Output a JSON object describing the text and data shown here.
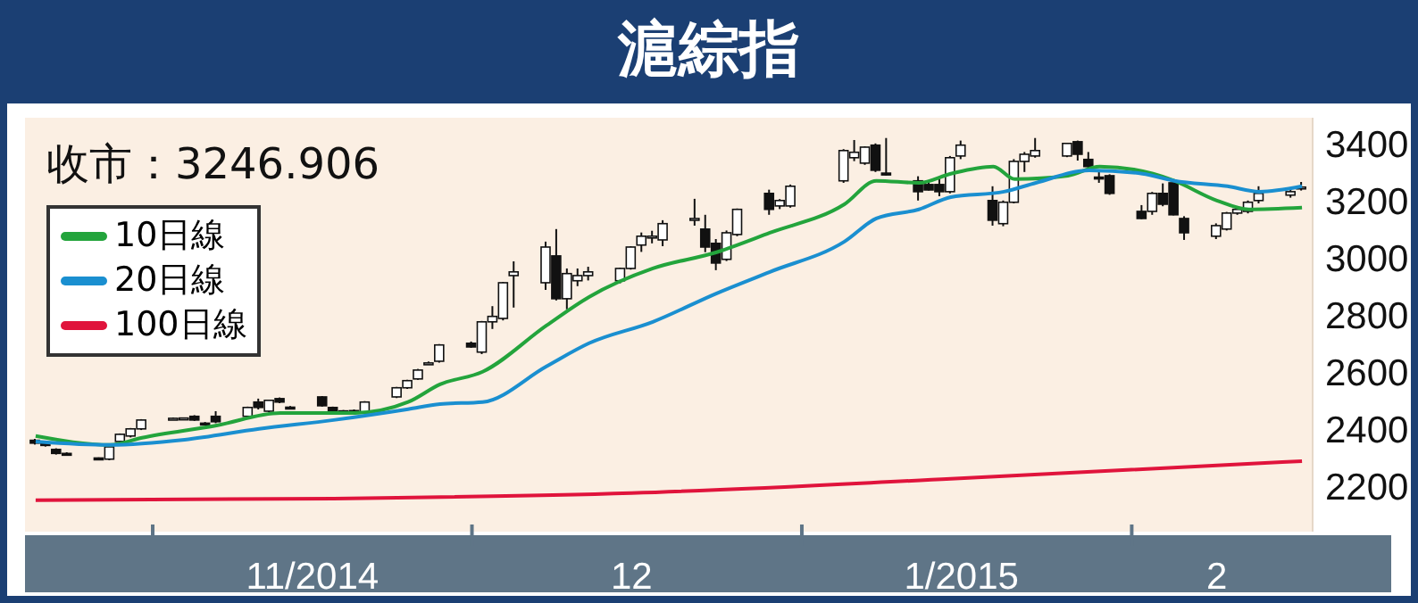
{
  "chart_data": {
    "type": "candlestick",
    "title": "滬綜指",
    "annotations": [
      "收市：3246.906"
    ],
    "legend": "top left",
    "xlim": [
      "2014-10-20",
      "2015-02-18"
    ],
    "ylim": [
      2040,
      3490
    ],
    "yticks": [
      2200,
      2400,
      2600,
      2800,
      3000,
      3200,
      3400
    ],
    "xticks": [
      {
        "value": "2014-11-01",
        "label": null
      },
      {
        "value": "2014-11-16",
        "label": "11/2014"
      },
      {
        "value": "2014-12-01",
        "label": null
      },
      {
        "value": "2014-12-16",
        "label": "12"
      },
      {
        "value": "2015-01-01",
        "label": null
      },
      {
        "value": "2015-01-16",
        "label": "1/2015"
      },
      {
        "value": "2015-02-01",
        "label": null
      },
      {
        "value": "2015-02-09",
        "label": "2"
      }
    ],
    "x": [
      "2014-10-21",
      "2014-10-22",
      "2014-10-23",
      "2014-10-24",
      "2014-10-27",
      "2014-10-28",
      "2014-10-29",
      "2014-10-30",
      "2014-10-31",
      "2014-11-03",
      "2014-11-04",
      "2014-11-05",
      "2014-11-06",
      "2014-11-07",
      "2014-11-10",
      "2014-11-11",
      "2014-11-12",
      "2014-11-13",
      "2014-11-14",
      "2014-11-17",
      "2014-11-18",
      "2014-11-19",
      "2014-11-20",
      "2014-11-21",
      "2014-11-24",
      "2014-11-25",
      "2014-11-26",
      "2014-11-27",
      "2014-11-28",
      "2014-12-01",
      "2014-12-02",
      "2014-12-03",
      "2014-12-04",
      "2014-12-05",
      "2014-12-08",
      "2014-12-09",
      "2014-12-10",
      "2014-12-11",
      "2014-12-12",
      "2014-12-15",
      "2014-12-16",
      "2014-12-17",
      "2014-12-18",
      "2014-12-19",
      "2014-12-22",
      "2014-12-23",
      "2014-12-24",
      "2014-12-25",
      "2014-12-26",
      "2014-12-29",
      "2014-12-30",
      "2014-12-31",
      "2015-01-05",
      "2015-01-06",
      "2015-01-07",
      "2015-01-08",
      "2015-01-09",
      "2015-01-12",
      "2015-01-13",
      "2015-01-14",
      "2015-01-15",
      "2015-01-16",
      "2015-01-19",
      "2015-01-20",
      "2015-01-21",
      "2015-01-22",
      "2015-01-23",
      "2015-01-26",
      "2015-01-27",
      "2015-01-28",
      "2015-01-29",
      "2015-01-30",
      "2015-02-02",
      "2015-02-03",
      "2015-02-04",
      "2015-02-05",
      "2015-02-06",
      "2015-02-09",
      "2015-02-10",
      "2015-02-11",
      "2015-02-12",
      "2015-02-13",
      "2015-02-16",
      "2015-02-17"
    ],
    "ohlc": [
      [
        2360,
        2365,
        2345,
        2350
      ],
      [
        2352,
        2356,
        2338,
        2342
      ],
      [
        2328,
        2332,
        2310,
        2314
      ],
      [
        2314,
        2318,
        2308,
        2311
      ],
      [
        2298,
        2300,
        2290,
        2293
      ],
      [
        2294,
        2340,
        2290,
        2337
      ],
      [
        2356,
        2384,
        2352,
        2381
      ],
      [
        2375,
        2403,
        2370,
        2400
      ],
      [
        2400,
        2434,
        2396,
        2431
      ],
      [
        2436,
        2440,
        2432,
        2437
      ],
      [
        2437,
        2440,
        2433,
        2438
      ],
      [
        2444,
        2448,
        2428,
        2431
      ],
      [
        2420,
        2424,
        2416,
        2419
      ],
      [
        2444,
        2462,
        2420,
        2425
      ],
      [
        2444,
        2478,
        2440,
        2475
      ],
      [
        2494,
        2506,
        2468,
        2475
      ],
      [
        2462,
        2502,
        2458,
        2500
      ],
      [
        2506,
        2510,
        2490,
        2494
      ],
      [
        2476,
        2480,
        2472,
        2475
      ],
      [
        2512,
        2515,
        2478,
        2481
      ],
      [
        2475,
        2478,
        2460,
        2462
      ],
      [
        2463,
        2466,
        2459,
        2462
      ],
      [
        2464,
        2468,
        2458,
        2461
      ],
      [
        2456,
        2497,
        2452,
        2494
      ],
      [
        2512,
        2547,
        2508,
        2544
      ],
      [
        2544,
        2572,
        2540,
        2569
      ],
      [
        2575,
        2610,
        2572,
        2606
      ],
      [
        2630,
        2636,
        2626,
        2631
      ],
      [
        2637,
        2697,
        2632,
        2694
      ],
      [
        2700,
        2706,
        2684,
        2687
      ],
      [
        2669,
        2778,
        2662,
        2775
      ],
      [
        2775,
        2830,
        2750,
        2794
      ],
      [
        2787,
        2915,
        2780,
        2912
      ],
      [
        2937,
        2987,
        2825,
        2950
      ],
      [
        2912,
        3056,
        2887,
        3037
      ],
      [
        3006,
        3100,
        2850,
        2856
      ],
      [
        2856,
        2962,
        2819,
        2944
      ],
      [
        2919,
        2962,
        2900,
        2937
      ],
      [
        2937,
        2968,
        2920,
        2950
      ],
      [
        2919,
        2965,
        2910,
        2962
      ],
      [
        2962,
        3040,
        2958,
        3037
      ],
      [
        3044,
        3088,
        3020,
        3075
      ],
      [
        3069,
        3094,
        3050,
        3075
      ],
      [
        3062,
        3131,
        3040,
        3119
      ],
      [
        3135,
        3206,
        3112,
        3137
      ],
      [
        3100,
        3150,
        3019,
        3037
      ],
      [
        3050,
        3065,
        2956,
        2981
      ],
      [
        2994,
        3095,
        2988,
        3087
      ],
      [
        3081,
        3172,
        3075,
        3169
      ],
      [
        3225,
        3238,
        3150,
        3169
      ],
      [
        3181,
        3205,
        3170,
        3200
      ],
      [
        3181,
        3256,
        3175,
        3250
      ],
      [
        3269,
        3380,
        3262,
        3375
      ],
      [
        3350,
        3412,
        3338,
        3369
      ],
      [
        3331,
        3390,
        3325,
        3387
      ],
      [
        3394,
        3400,
        3300,
        3306
      ],
      [
        3296,
        3419,
        3288,
        3294
      ],
      [
        3269,
        3285,
        3200,
        3231
      ],
      [
        3256,
        3265,
        3235,
        3237
      ],
      [
        3256,
        3275,
        3215,
        3231
      ],
      [
        3231,
        3356,
        3225,
        3350
      ],
      [
        3356,
        3410,
        3345,
        3394
      ],
      [
        3200,
        3250,
        3112,
        3131
      ],
      [
        3119,
        3200,
        3110,
        3194
      ],
      [
        3194,
        3345,
        3190,
        3337
      ],
      [
        3337,
        3370,
        3300,
        3362
      ],
      [
        3356,
        3419,
        3350,
        3375
      ],
      [
        3356,
        3402,
        3352,
        3400
      ],
      [
        3406,
        3410,
        3340,
        3362
      ],
      [
        3344,
        3370,
        3315,
        3319
      ],
      [
        3282,
        3300,
        3262,
        3281
      ],
      [
        3287,
        3292,
        3220,
        3225
      ],
      [
        3162,
        3184,
        3135,
        3137
      ],
      [
        3162,
        3230,
        3150,
        3225
      ],
      [
        3225,
        3260,
        3180,
        3187
      ],
      [
        3262,
        3268,
        3148,
        3150
      ],
      [
        3137,
        3145,
        3062,
        3087
      ],
      [
        3075,
        3120,
        3065,
        3112
      ],
      [
        3100,
        3160,
        3095,
        3156
      ],
      [
        3156,
        3172,
        3150,
        3169
      ],
      [
        3162,
        3200,
        3155,
        3194
      ],
      [
        3200,
        3250,
        3190,
        3225
      ],
      [
        3219,
        3240,
        3210,
        3231
      ],
      [
        3244,
        3265,
        3235,
        3247
      ]
    ],
    "series": [
      {
        "type": "line",
        "name": "10日線",
        "color": "#23a43c",
        "x": [
          "2014-10-21",
          "2014-10-28",
          "2014-10-31",
          "2014-11-07",
          "2014-11-13",
          "2014-11-20",
          "2014-11-25",
          "2014-11-28",
          "2014-12-02",
          "2014-12-08",
          "2014-12-12",
          "2014-12-18",
          "2014-12-24",
          "2014-12-29",
          "2015-01-05",
          "2015-01-08",
          "2015-01-12",
          "2015-01-15",
          "2015-01-19",
          "2015-01-21",
          "2015-01-26",
          "2015-01-29",
          "2015-02-03",
          "2015-02-05",
          "2015-02-09",
          "2015-02-12",
          "2015-02-17"
        ],
        "values": [
          2375,
          2344,
          2369,
          2412,
          2456,
          2456,
          2494,
          2556,
          2600,
          2762,
          2862,
          2962,
          3019,
          3087,
          3187,
          3269,
          3262,
          3294,
          3319,
          3275,
          3287,
          3319,
          3294,
          3269,
          3200,
          3169,
          3175
        ]
      },
      {
        "type": "line",
        "name": "20日線",
        "color": "#1a8fd0",
        "x": [
          "2014-10-21",
          "2014-10-28",
          "2014-11-04",
          "2014-11-11",
          "2014-11-18",
          "2014-11-25",
          "2014-11-28",
          "2014-12-02",
          "2014-12-08",
          "2014-12-12",
          "2014-12-18",
          "2014-12-24",
          "2014-12-29",
          "2015-01-05",
          "2015-01-08",
          "2015-01-12",
          "2015-01-15",
          "2015-01-20",
          "2015-01-23",
          "2015-01-28",
          "2015-02-02",
          "2015-02-05",
          "2015-02-10",
          "2015-02-13",
          "2015-02-17"
        ],
        "values": [
          2356,
          2344,
          2362,
          2400,
          2431,
          2469,
          2487,
          2494,
          2619,
          2700,
          2775,
          2875,
          2950,
          3056,
          3137,
          3169,
          3212,
          3231,
          3262,
          3306,
          3294,
          3269,
          3250,
          3231,
          3250
        ]
      },
      {
        "type": "line",
        "name": "100日線",
        "color": "#e0143c",
        "x": [
          "2014-10-21",
          "2014-11-18",
          "2014-12-16",
          "2015-01-15",
          "2015-02-17"
        ],
        "values": [
          2150,
          2156,
          2175,
          2225,
          2287
        ]
      }
    ]
  }
}
